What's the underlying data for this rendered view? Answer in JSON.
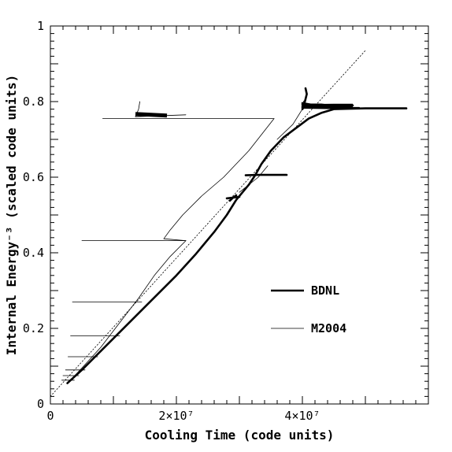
{
  "chart_data": {
    "type": "line",
    "title": "",
    "xlabel": "Cooling Time (code units)",
    "ylabel": "Internal Energy⁻³ (scaled code units)",
    "xlim": [
      0,
      60000000
    ],
    "ylim": [
      0,
      1
    ],
    "x_ticks": [
      {
        "value": 0,
        "label": "0"
      },
      {
        "value": 20000000,
        "label": "2×10⁷"
      },
      {
        "value": 40000000,
        "label": "4×10⁷"
      }
    ],
    "y_ticks": [
      {
        "value": 0,
        "label": "0"
      },
      {
        "value": 0.2,
        "label": "0.2"
      },
      {
        "value": 0.4,
        "label": "0.4"
      },
      {
        "value": 0.6,
        "label": "0.6"
      },
      {
        "value": 0.8,
        "label": "0.8"
      },
      {
        "value": 1,
        "label": "1"
      }
    ],
    "legend": {
      "placement": "center-right"
    },
    "series": [
      {
        "name": "BDNL",
        "style": "thick",
        "segments": [
          [
            [
              2700000,
              0.055
            ],
            [
              5000000,
              0.09
            ],
            [
              8000000,
              0.14
            ],
            [
              11000000,
              0.19
            ],
            [
              14000000,
              0.24
            ],
            [
              17000000,
              0.29
            ],
            [
              20000000,
              0.34
            ],
            [
              23000000,
              0.395
            ],
            [
              26000000,
              0.455
            ],
            [
              28000000,
              0.5
            ],
            [
              29500000,
              0.54
            ],
            [
              30500000,
              0.56
            ],
            [
              31500000,
              0.58
            ],
            [
              32500000,
              0.605
            ],
            [
              33500000,
              0.635
            ],
            [
              35000000,
              0.67
            ],
            [
              37000000,
              0.705
            ],
            [
              39000000,
              0.73
            ],
            [
              41000000,
              0.755
            ],
            [
              43000000,
              0.77
            ],
            [
              45000000,
              0.78
            ],
            [
              50000000,
              0.782
            ],
            [
              56500000,
              0.782
            ]
          ],
          [
            [
              28000000,
              0.544
            ],
            [
              29000000,
              0.546
            ],
            [
              30000000,
              0.548
            ]
          ],
          [
            [
              28500000,
              0.538
            ],
            [
              29000000,
              0.546
            ],
            [
              29500000,
              0.552
            ]
          ],
          [
            [
              31000000,
              0.605
            ],
            [
              33000000,
              0.606
            ],
            [
              37500000,
              0.606
            ]
          ],
          [
            [
              40000000,
              0.787
            ],
            [
              44000000,
              0.79
            ],
            [
              48000000,
              0.79
            ]
          ],
          [
            [
              40000000,
              0.792
            ],
            [
              43000000,
              0.792
            ],
            [
              46000000,
              0.786
            ]
          ],
          [
            [
              40000000,
              0.784
            ],
            [
              44000000,
              0.783
            ],
            [
              49000000,
              0.783
            ]
          ],
          [
            [
              40000000,
              0.796
            ],
            [
              42000000,
              0.79
            ],
            [
              45000000,
              0.785
            ]
          ],
          [
            [
              40400000,
              0.8
            ],
            [
              40700000,
              0.82
            ],
            [
              40500000,
              0.835
            ]
          ],
          [
            [
              40000000,
              0.78
            ],
            [
              40400000,
              0.79
            ],
            [
              40300000,
              0.8
            ]
          ]
        ]
      },
      {
        "name": "M2004",
        "style": "thin",
        "segments": [
          [
            [
              21500000,
              0.432
            ],
            [
              19000000,
              0.39
            ],
            [
              16500000,
              0.34
            ],
            [
              14000000,
              0.28
            ],
            [
              11000000,
              0.215
            ],
            [
              8000000,
              0.15
            ],
            [
              5000000,
              0.095
            ],
            [
              3000000,
              0.06
            ]
          ],
          [
            [
              5000000,
              0.432
            ],
            [
              21500000,
              0.432
            ]
          ],
          [
            [
              21500000,
              0.432
            ],
            [
              18000000,
              0.437
            ],
            [
              19000000,
              0.46
            ],
            [
              21000000,
              0.5
            ],
            [
              24000000,
              0.55
            ],
            [
              27500000,
              0.6
            ],
            [
              31500000,
              0.67
            ],
            [
              35500000,
              0.755
            ]
          ],
          [
            [
              8300000,
              0.755
            ],
            [
              35500000,
              0.755
            ]
          ],
          [
            [
              3500000,
              0.27
            ],
            [
              14500000,
              0.27
            ]
          ],
          [
            [
              3200000,
              0.18
            ],
            [
              11000000,
              0.18
            ]
          ],
          [
            [
              2800000,
              0.125
            ],
            [
              7500000,
              0.125
            ]
          ],
          [
            [
              2400000,
              0.09
            ],
            [
              5500000,
              0.09
            ]
          ],
          [
            [
              2000000,
              0.075
            ],
            [
              4500000,
              0.075
            ]
          ],
          [
            [
              1800000,
              0.063
            ],
            [
              3800000,
              0.063
            ]
          ],
          [
            [
              13500000,
              0.76
            ],
            [
              21500000,
              0.765
            ]
          ],
          [
            [
              13500000,
              0.76
            ],
            [
              14000000,
              0.78
            ],
            [
              14200000,
              0.8
            ]
          ],
          [
            [
              30000000,
              0.56
            ],
            [
              33000000,
              0.6
            ],
            [
              34500000,
              0.63
            ]
          ],
          [
            [
              36000000,
              0.7
            ],
            [
              38500000,
              0.74
            ],
            [
              40000000,
              0.78
            ]
          ]
        ]
      },
      {
        "name": "",
        "style": "dotted",
        "segments": [
          [
            [
              0,
              0.02
            ],
            [
              50000000,
              0.935
            ]
          ]
        ]
      }
    ],
    "annotations": [
      {
        "type": "thick-blob",
        "points": [
          [
            13500000,
            0.767
          ],
          [
            16000000,
            0.765
          ],
          [
            18500000,
            0.763
          ]
        ]
      },
      {
        "type": "thick-blob",
        "points": [
          [
            40200000,
            0.788
          ],
          [
            45000000,
            0.789
          ],
          [
            48000000,
            0.789
          ]
        ]
      }
    ]
  }
}
